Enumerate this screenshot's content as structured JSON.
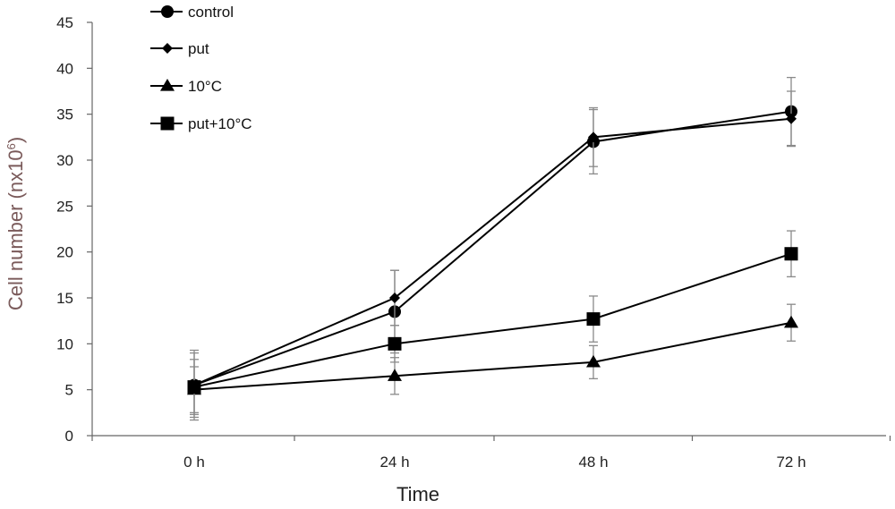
{
  "chart_data": {
    "type": "line",
    "title": "",
    "xlabel": "Time",
    "ylabel_main": "Cell number (nx10",
    "ylabel_sup": "6",
    "ylabel_end": ")",
    "categories": [
      "0 h",
      "24 h",
      "48 h",
      "72 h"
    ],
    "ylim": [
      0,
      45
    ],
    "yticks": [
      0,
      5,
      10,
      15,
      20,
      25,
      30,
      35,
      40,
      45
    ],
    "grid": false,
    "legend_position": "top-left",
    "series": [
      {
        "name": "control",
        "marker": "circle",
        "values": [
          5.5,
          13.5,
          32.0,
          35.3
        ],
        "errors": [
          3.5,
          4.5,
          3.5,
          3.7
        ]
      },
      {
        "name": "put",
        "marker": "diamond",
        "values": [
          5.5,
          15.0,
          32.5,
          34.5
        ],
        "errors": [
          3.8,
          3.0,
          3.2,
          3.0
        ]
      },
      {
        "name": "10°C",
        "marker": "triangle",
        "values": [
          5.0,
          6.5,
          8.0,
          12.3
        ],
        "errors": [
          2.5,
          2.0,
          1.8,
          2.0
        ]
      },
      {
        "name": "put+10°C",
        "marker": "square",
        "values": [
          5.3,
          10.0,
          12.7,
          19.8
        ],
        "errors": [
          3.0,
          2.0,
          2.5,
          2.5
        ]
      }
    ]
  }
}
